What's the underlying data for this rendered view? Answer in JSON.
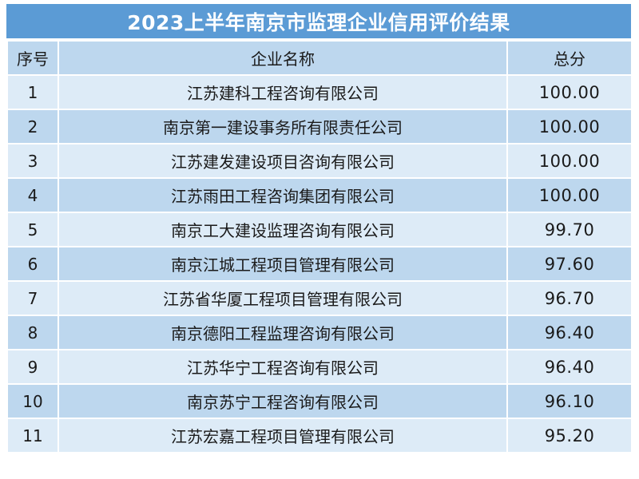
{
  "title": "2023上半年南京市监理企业信用评价结果",
  "headers": {
    "index": "序号",
    "company": "企业名称",
    "score": "总分"
  },
  "rows": [
    {
      "index": "1",
      "company": "江苏建科工程咨询有限公司",
      "score": "100.00"
    },
    {
      "index": "2",
      "company": "南京第一建设事务所有限责任公司",
      "score": "100.00"
    },
    {
      "index": "3",
      "company": "江苏建发建设项目咨询有限公司",
      "score": "100.00"
    },
    {
      "index": "4",
      "company": "江苏雨田工程咨询集团有限公司",
      "score": "100.00"
    },
    {
      "index": "5",
      "company": "南京工大建设监理咨询有限公司",
      "score": "99.70"
    },
    {
      "index": "6",
      "company": "南京江城工程项目管理有限公司",
      "score": "97.60"
    },
    {
      "index": "7",
      "company": "江苏省华厦工程项目管理有限公司",
      "score": "96.70"
    },
    {
      "index": "8",
      "company": "南京德阳工程监理咨询有限公司",
      "score": "96.40"
    },
    {
      "index": "9",
      "company": "江苏华宁工程咨询有限公司",
      "score": "96.40"
    },
    {
      "index": "10",
      "company": "南京苏宁工程咨询有限公司",
      "score": "96.10"
    },
    {
      "index": "11",
      "company": "江苏宏嘉工程项目管理有限公司",
      "score": "95.20"
    }
  ],
  "colors": {
    "title_bg": "#5b9bd5",
    "header_bg": "#bdd7ee",
    "row_light": "#ddebf7",
    "row_dark": "#bdd7ee"
  }
}
